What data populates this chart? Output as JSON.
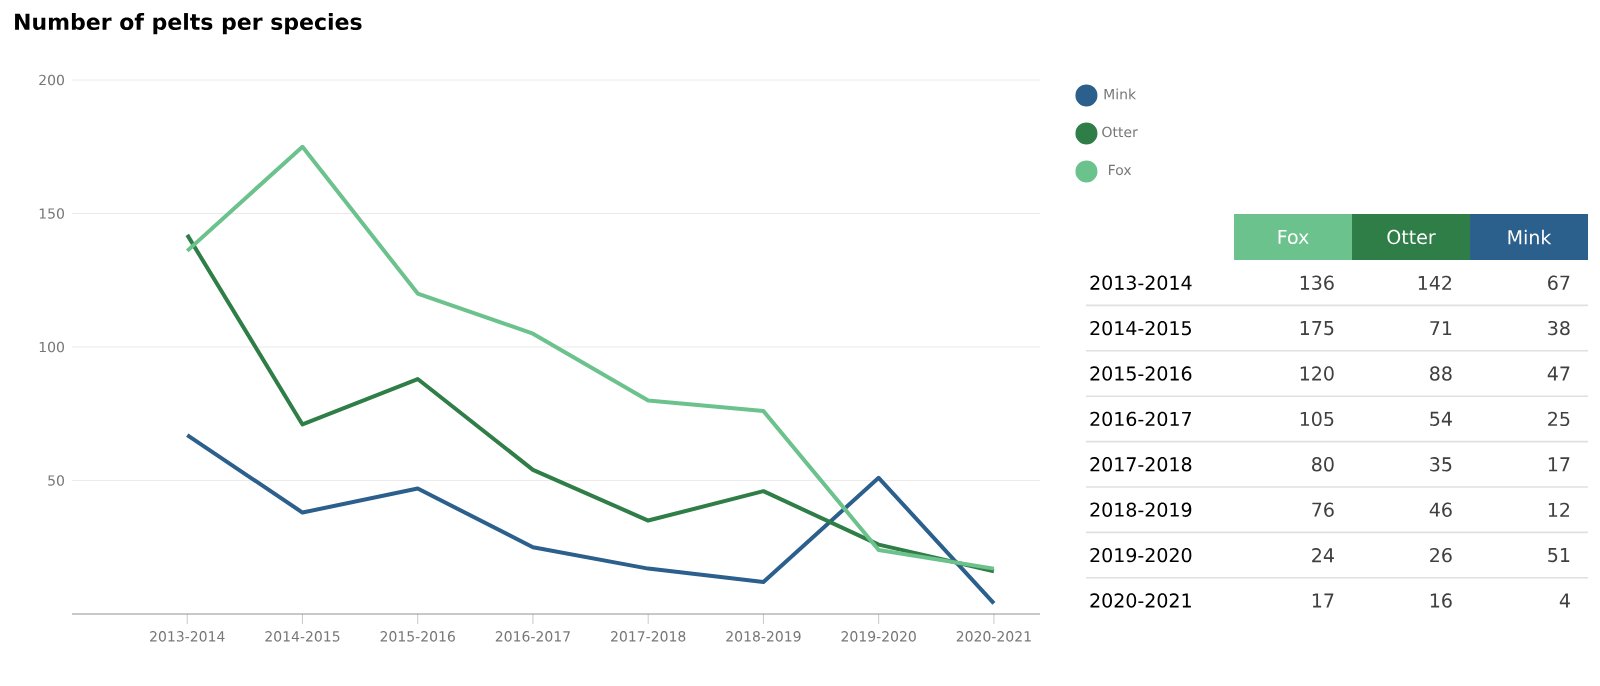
{
  "chart_data": [
    {
      "type": "line",
      "title": "Number of pelts per species",
      "categories": [
        "2013-2014",
        "2014-2015",
        "2015-2016",
        "2016-2017",
        "2017-2018",
        "2018-2019",
        "2019-2020",
        "2020-2021"
      ],
      "series": [
        {
          "name": "Mink",
          "color": "#2b5f8c",
          "values": [
            67,
            38,
            47,
            25,
            17,
            12,
            51,
            4
          ]
        },
        {
          "name": "Otter",
          "color": "#2f7d47",
          "values": [
            142,
            71,
            88,
            54,
            35,
            46,
            26,
            16
          ]
        },
        {
          "name": "Fox",
          "color": "#6cc28c",
          "values": [
            136,
            175,
            120,
            105,
            80,
            76,
            24,
            17
          ]
        }
      ],
      "ylim": [
        0,
        200
      ],
      "yticks": [
        50,
        100,
        150,
        200
      ],
      "grid": "y",
      "legend": "right",
      "line_style": "solid"
    },
    {
      "type": "heatmap",
      "categories": [
        "Fox",
        "Otter",
        "Mink"
      ],
      "y_categories": [
        "2013-2014",
        "2014-2015",
        "2015-2016",
        "2016-2017",
        "2017-2018",
        "2018-2019",
        "2019-2020",
        "2020-2021"
      ],
      "cells": [
        [
          136,
          142,
          67
        ],
        [
          175,
          71,
          38
        ],
        [
          120,
          88,
          47
        ],
        [
          105,
          54,
          25
        ],
        [
          80,
          35,
          17
        ],
        [
          76,
          46,
          12
        ],
        [
          24,
          26,
          51
        ],
        [
          17,
          16,
          4
        ]
      ],
      "data_labels": true
    }
  ]
}
